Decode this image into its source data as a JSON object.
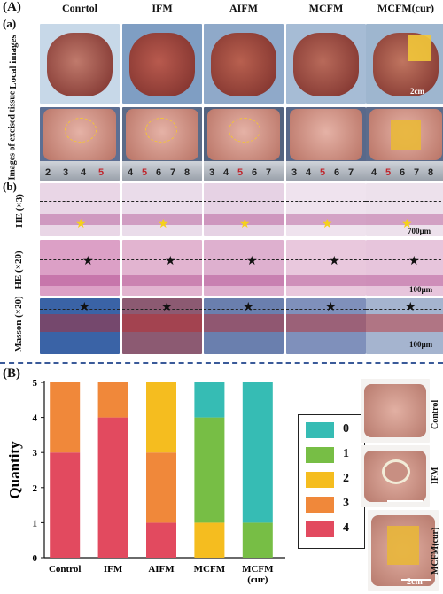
{
  "panelA": {
    "label": "(A)",
    "sub_a": "(a)",
    "sub_b": "(b)",
    "columns": [
      "Conrtol",
      "IFM",
      "AIFM",
      "MCFM",
      "MCFM(cur)"
    ],
    "rows": {
      "local": "Local images",
      "excised": "Images of excised tissue",
      "he3": "HE (×3)",
      "he20": "HE (×20)",
      "masson": "Masson (×20)"
    },
    "scales": {
      "local": "2cm",
      "he3": "700µm",
      "he20": "100µm",
      "masson": "100µm"
    },
    "ruler_numbers": [
      [
        "2",
        "3",
        "4",
        "5"
      ],
      [
        "4",
        "5",
        "6",
        "7",
        "8"
      ],
      [
        "3",
        "4",
        "5",
        "6",
        "7"
      ],
      [
        "3",
        "4",
        "5",
        "6",
        "7"
      ],
      [
        "4",
        "5",
        "6",
        "7",
        "8"
      ]
    ]
  },
  "panelB": {
    "label": "(B)",
    "photos": [
      "Control",
      "IFM",
      "MCFM(cur)"
    ],
    "photo_scale": "2cm"
  },
  "chart_data": {
    "type": "bar",
    "stacked": true,
    "categories": [
      "Control",
      "IFM",
      "AIFM",
      "MCFM",
      "MCFM (cur)"
    ],
    "ylabel": "Quantity",
    "ylim": [
      0,
      5
    ],
    "yticks": [
      0,
      1,
      2,
      3,
      4,
      5
    ],
    "series": [
      {
        "name": "4",
        "color": "#e24a5f",
        "values": [
          3,
          4,
          1,
          0,
          0
        ]
      },
      {
        "name": "3",
        "color": "#f0883a",
        "values": [
          2,
          1,
          2,
          0,
          0
        ]
      },
      {
        "name": "2",
        "color": "#f5bd1f",
        "values": [
          0,
          0,
          2,
          1,
          0
        ]
      },
      {
        "name": "1",
        "color": "#77be45",
        "values": [
          0,
          0,
          0,
          3,
          1
        ]
      },
      {
        "name": "0",
        "color": "#36bcb4",
        "values": [
          0,
          0,
          0,
          1,
          4
        ]
      }
    ],
    "legend_order": [
      "0",
      "1",
      "2",
      "3",
      "4"
    ],
    "legend_position": "right"
  }
}
